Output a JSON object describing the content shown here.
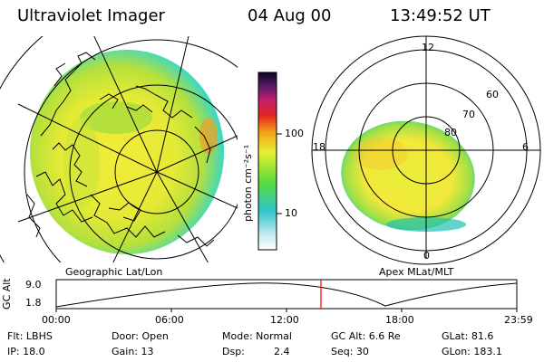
{
  "header": {
    "title": "Ultraviolet Imager",
    "date": "04 Aug 00",
    "time": "13:49:52 UT"
  },
  "geo_panel": {
    "label": "Geographic Lat/Lon"
  },
  "apex_panel": {
    "label": "Apex MLat/MLT",
    "lat_labels": [
      "60",
      "70",
      "80"
    ],
    "mlt_labels": {
      "top": "12",
      "left": "18",
      "right": "6",
      "bottom": "0"
    }
  },
  "colorbar": {
    "label": "photon cm⁻²s⁻¹",
    "ticks": [
      "100",
      "10"
    ]
  },
  "gc_alt": {
    "axis_label": "GC Alt",
    "y_ticks": [
      "9.0",
      "1.8"
    ],
    "x_ticks": [
      "00:00",
      "06:00",
      "12:00",
      "18:00",
      "23:59"
    ],
    "current_time_marker": "13:49:52"
  },
  "info": {
    "flt": "Flt: LBHS",
    "ip": "IP: 18.0",
    "door": "Door: Open",
    "gain": "Gain: 13",
    "mode": "Mode: Normal",
    "dsp": "Dsp:",
    "dsp_val": "2.4",
    "gcalt": "GC Alt: 6.6 Re",
    "seq": "Seq: 30",
    "glat": "GLat:  81.6",
    "glon": "GLon: 183.1"
  },
  "colors": {
    "marker": "#ff0000",
    "line": "#000000"
  }
}
